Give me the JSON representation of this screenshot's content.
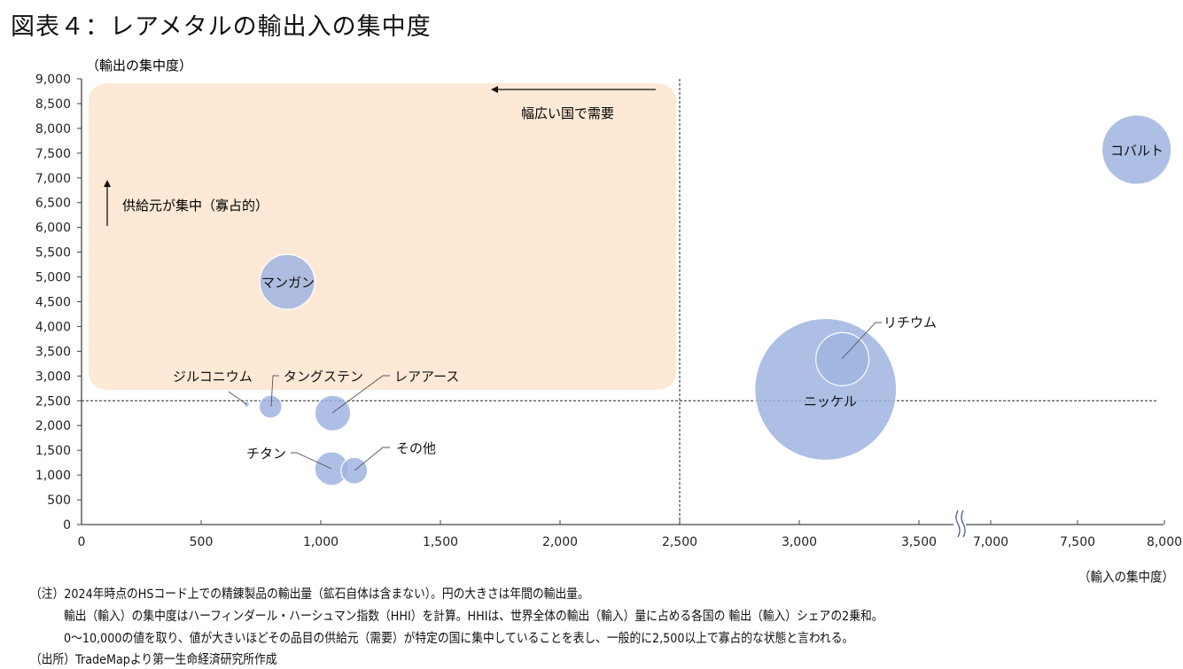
{
  "title": "図表４：レアメタルの輸出入の集中度",
  "chart_data": {
    "type": "bubble",
    "ylabel": "（輸出の集中度）",
    "xlabel": "（輸入の集中度）",
    "ylim": [
      0,
      9000
    ],
    "yticks": [
      0,
      500,
      1000,
      1500,
      2000,
      2500,
      3000,
      3500,
      4000,
      4500,
      5000,
      5500,
      6000,
      6500,
      7000,
      7500,
      8000,
      8500,
      9000
    ],
    "xlim_segments": [
      [
        0,
        3700
      ],
      [
        6850,
        8000
      ]
    ],
    "xaxis_break": true,
    "xticks": [
      0,
      500,
      1000,
      1500,
      2000,
      2500,
      3000,
      3500,
      7000,
      7500,
      8000
    ],
    "reference_lines": {
      "x": 2500,
      "y": 2500,
      "style": "dashed"
    },
    "points": [
      {
        "name": "コバルト",
        "x": 7840,
        "y": 7570,
        "size": 24
      },
      {
        "name": "マンガン",
        "x": 860,
        "y": 4900,
        "size": 15
      },
      {
        "name": "ニッケル",
        "x": 3110,
        "y": 2730,
        "size": 100
      },
      {
        "name": "リチウム",
        "x": 3180,
        "y": 3340,
        "size": 14
      },
      {
        "name": "ジルコニウム",
        "x": 690,
        "y": 2430,
        "size": 0.15
      },
      {
        "name": "タングステン",
        "x": 790,
        "y": 2380,
        "size": 2.6
      },
      {
        "name": "レアアース",
        "x": 1050,
        "y": 2250,
        "size": 6.3
      },
      {
        "name": "チタン",
        "x": 1045,
        "y": 1130,
        "size": 5.6
      },
      {
        "name": "その他",
        "x": 1140,
        "y": 1090,
        "size": 3.5
      }
    ],
    "annotations": {
      "region_label_x": "幅広い国で需要",
      "region_label_y": "供給元が集中（寡占的）"
    },
    "colors": {
      "bubble": "#9fb4e0",
      "region": "#fde9d6",
      "axis": "#444444"
    }
  },
  "notes": [
    "（注）2024年時点のHSコード上での精錬製品の輸出量（鉱石自体は含まない）。円の大きさは年間の輸出量。",
    "輸出（輸入）の集中度はハーフィンダール・ハーシュマン指数（HHI）を計算。HHIは、世界全体の輸出（輸入）量に占める各国の 輸出（輸入）シェアの2乗和。",
    "0～10,000の値を取り、値が大きいほどその品目の供給元（需要）が特定の国に集中していることを表し、一般的に2,500以上で寡占的な状態と言われる。",
    "（出所）TradeMapより第一生命経済研究所作成"
  ]
}
